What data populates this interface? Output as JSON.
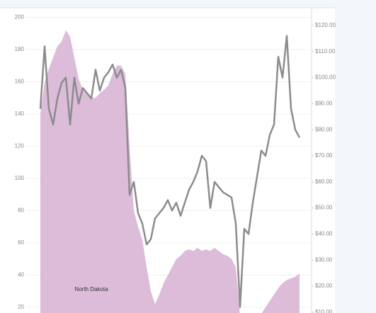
{
  "chart_data": {
    "type": "area-line",
    "categories": [
      null,
      null,
      null,
      null,
      null,
      null,
      null,
      null,
      null,
      null,
      null,
      null,
      null,
      null,
      null,
      null,
      null,
      null,
      null,
      null,
      null,
      null,
      null,
      null,
      null,
      null,
      null,
      null,
      null,
      null,
      null,
      null,
      null,
      null,
      null,
      null,
      null,
      null,
      null,
      null,
      null,
      null,
      null,
      null,
      null,
      null,
      null,
      null,
      null,
      null,
      null,
      null,
      null,
      null,
      null,
      null,
      null,
      null,
      null,
      null,
      null,
      null
    ],
    "series": [
      {
        "kind": "area",
        "color": "#dcbcd9",
        "values": [
          140,
          160,
          168,
          175,
          182,
          185,
          192,
          188,
          175,
          162,
          155,
          152,
          150,
          150,
          153,
          155,
          158,
          165,
          170,
          170,
          165,
          120,
          80,
          70,
          62,
          45,
          30,
          22,
          28,
          35,
          40,
          45,
          50,
          52,
          55,
          56,
          55,
          57,
          55,
          56,
          55,
          57,
          55,
          53,
          52,
          50,
          45,
          15,
          14,
          13,
          13,
          14,
          16,
          20,
          24,
          28,
          32,
          35,
          37,
          38,
          39,
          41
        ]
      },
      {
        "kind": "line",
        "axis": "y2",
        "color": "#8c8c8c",
        "values": [
          88,
          112,
          88,
          82,
          92,
          98,
          100,
          82,
          100,
          90,
          96,
          94,
          92,
          103,
          95,
          100,
          102,
          105,
          100,
          103,
          96,
          55,
          60,
          48,
          44,
          36,
          38,
          46,
          48,
          50,
          53,
          49,
          52,
          47,
          52,
          57,
          60,
          64,
          70,
          68,
          50,
          60,
          58,
          56,
          55,
          54,
          44,
          12,
          42,
          40,
          52,
          62,
          72,
          70,
          78,
          82,
          108,
          100,
          116,
          88,
          80,
          77
        ]
      }
    ],
    "ylim": [
      16.5,
      205.5
    ],
    "yticks": [
      20,
      40,
      60,
      80,
      100,
      120,
      140,
      160,
      180,
      200
    ],
    "y2lim": [
      9.7,
      126.5
    ],
    "y2ticks": [
      {
        "value": 10,
        "label": "$10.00"
      },
      {
        "value": 20,
        "label": "$20.00"
      },
      {
        "value": 30,
        "label": "$30.00"
      },
      {
        "value": 40,
        "label": "$40.00"
      },
      {
        "value": 50,
        "label": "$50.00"
      },
      {
        "value": 60,
        "label": "$60.00"
      },
      {
        "value": 70,
        "label": "$70.00"
      },
      {
        "value": 80,
        "label": "$80.00"
      },
      {
        "value": 90,
        "label": "$90.00"
      },
      {
        "value": 100,
        "label": "$100.00"
      },
      {
        "value": 110,
        "label": "$110.00"
      },
      {
        "value": 120,
        "label": "$120.00"
      }
    ],
    "grid": true,
    "annotations": [
      {
        "text": "North Dakota"
      }
    ]
  }
}
